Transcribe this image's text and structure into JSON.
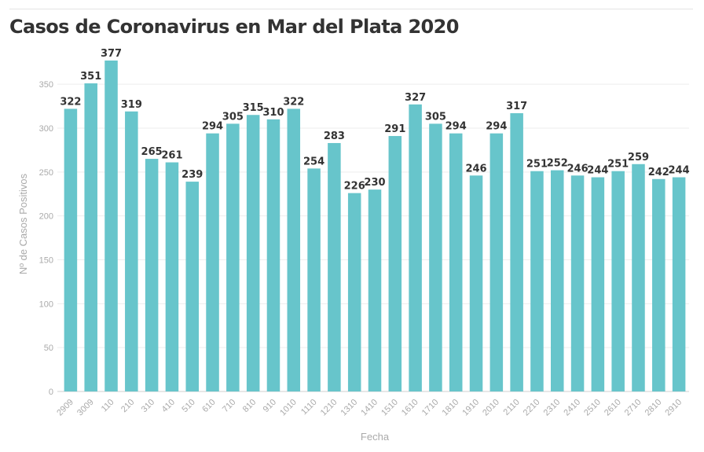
{
  "colors": {
    "bar": "#67c5cb",
    "grid": "#ededed",
    "axis": "#cfcfcf",
    "tick_text": "#aaaaaa",
    "title": "#333333",
    "label_text": "#333333"
  },
  "chart_data": {
    "type": "bar",
    "title": "Casos de Coronavirus en Mar del Plata 2020",
    "xlabel": "Fecha",
    "ylabel": "Nº de Casos Positivos",
    "ylim": [
      0,
      377
    ],
    "yticks": [
      0,
      50,
      100,
      150,
      200,
      250,
      300,
      350
    ],
    "grid": true,
    "legend": "none",
    "categories": [
      "2909",
      "3009",
      "110",
      "210",
      "310",
      "410",
      "510",
      "610",
      "710",
      "810",
      "910",
      "1010",
      "1110",
      "1210",
      "1310",
      "1410",
      "1510",
      "1610",
      "1710",
      "1810",
      "1910",
      "2010",
      "2110",
      "2210",
      "2310",
      "2410",
      "2510",
      "2610",
      "2710",
      "2810",
      "2910"
    ],
    "values": [
      322,
      351,
      377,
      319,
      265,
      261,
      239,
      294,
      305,
      315,
      310,
      322,
      254,
      283,
      226,
      230,
      291,
      327,
      305,
      294,
      246,
      294,
      317,
      251,
      252,
      246,
      244,
      251,
      259,
      242,
      244
    ],
    "data_labels": [
      "322",
      "351",
      "377",
      "319",
      "265",
      "261",
      "239",
      "294",
      "305",
      "315",
      "310",
      "322",
      "254",
      "283",
      "226",
      "230",
      "291",
      "327",
      "305",
      "294",
      "246",
      "294",
      "317",
      "251",
      "252",
      "246",
      "244",
      "251",
      "259",
      "242",
      "244"
    ]
  }
}
